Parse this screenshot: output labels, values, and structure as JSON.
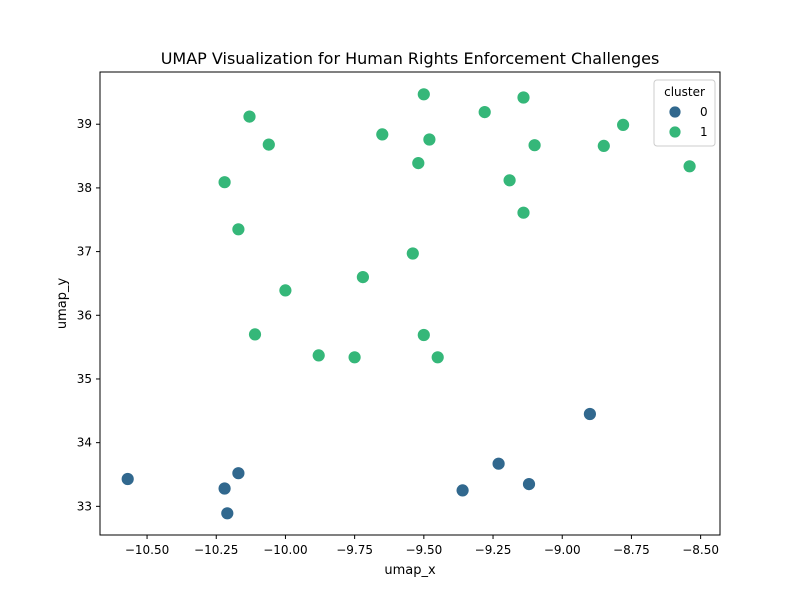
{
  "chart_data": {
    "type": "scatter",
    "title": "UMAP Visualization for Human Rights Enforcement Challenges",
    "xlabel": "umap_x",
    "ylabel": "umap_y",
    "xlim": [
      -10.67,
      -8.43
    ],
    "ylim": [
      32.55,
      39.82
    ],
    "xticks": [
      -10.5,
      -10.25,
      -10.0,
      -9.75,
      -9.5,
      -9.25,
      -9.0,
      -8.75,
      -8.5
    ],
    "xtick_labels": [
      "−10.50",
      "−10.25",
      "−10.00",
      "−9.75",
      "−9.50",
      "−9.25",
      "−9.00",
      "−8.75",
      "−8.50"
    ],
    "yticks": [
      33,
      34,
      35,
      36,
      37,
      38,
      39
    ],
    "ytick_labels": [
      "33",
      "34",
      "35",
      "36",
      "37",
      "38",
      "39"
    ],
    "grid": false,
    "legend": {
      "title": "cluster",
      "placement": "top-right",
      "entries": [
        {
          "label": "0",
          "color": "#31688e"
        },
        {
          "label": "1",
          "color": "#35b779"
        }
      ]
    },
    "series": [
      {
        "name": "0",
        "color": "#31688e",
        "points": [
          {
            "x": -10.57,
            "y": 33.43
          },
          {
            "x": -10.22,
            "y": 33.28
          },
          {
            "x": -10.17,
            "y": 33.52
          },
          {
            "x": -10.21,
            "y": 32.89
          },
          {
            "x": -9.36,
            "y": 33.25
          },
          {
            "x": -9.23,
            "y": 33.67
          },
          {
            "x": -9.12,
            "y": 33.35
          },
          {
            "x": -8.9,
            "y": 34.45
          }
        ]
      },
      {
        "name": "1",
        "color": "#35b779",
        "points": [
          {
            "x": -10.13,
            "y": 39.12
          },
          {
            "x": -10.06,
            "y": 38.68
          },
          {
            "x": -10.22,
            "y": 38.09
          },
          {
            "x": -10.17,
            "y": 37.35
          },
          {
            "x": -10.0,
            "y": 36.39
          },
          {
            "x": -10.11,
            "y": 35.7
          },
          {
            "x": -9.88,
            "y": 35.37
          },
          {
            "x": -9.75,
            "y": 35.34
          },
          {
            "x": -9.72,
            "y": 36.6
          },
          {
            "x": -9.65,
            "y": 38.84
          },
          {
            "x": -9.54,
            "y": 36.97
          },
          {
            "x": -9.52,
            "y": 38.39
          },
          {
            "x": -9.5,
            "y": 39.47
          },
          {
            "x": -9.48,
            "y": 38.76
          },
          {
            "x": -9.5,
            "y": 35.69
          },
          {
            "x": -9.45,
            "y": 35.34
          },
          {
            "x": -9.28,
            "y": 39.19
          },
          {
            "x": -9.19,
            "y": 38.12
          },
          {
            "x": -9.14,
            "y": 39.42
          },
          {
            "x": -9.14,
            "y": 37.61
          },
          {
            "x": -9.1,
            "y": 38.67
          },
          {
            "x": -8.85,
            "y": 38.66
          },
          {
            "x": -8.78,
            "y": 38.99
          },
          {
            "x": -8.54,
            "y": 38.34
          }
        ]
      }
    ]
  }
}
